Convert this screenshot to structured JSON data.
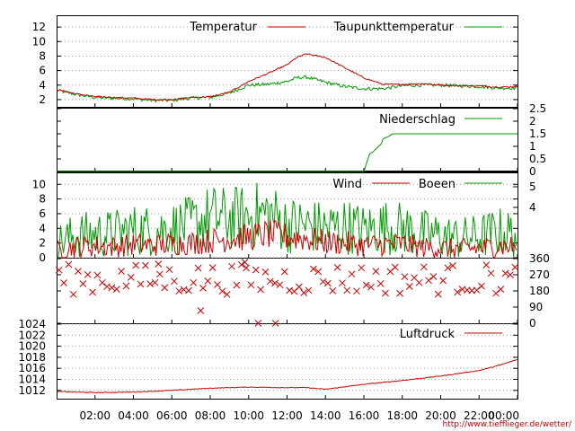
{
  "source_url": "http://www.tiefflieger.de/wetter/",
  "x_axis": {
    "ticks": [
      "02:00",
      "04:00",
      "06:00",
      "08:00",
      "10:00",
      "12:00",
      "14:00",
      "16:00",
      "18:00",
      "20:00",
      "22:00",
      "00:00"
    ],
    "range_hours": [
      0,
      24
    ]
  },
  "colors": {
    "red": "#cc0000",
    "green": "#009900",
    "grid": "#9a9a9a"
  },
  "chart_data": [
    {
      "type": "line",
      "panel": "temperature",
      "legend": [
        "Temperatur",
        "Taupunkttemperatur"
      ],
      "y_ticks": [
        "2",
        "4",
        "6",
        "8",
        "10",
        "12"
      ],
      "ylim": [
        1,
        13.5
      ],
      "x_hours": [
        0,
        1,
        2,
        3,
        4,
        5,
        6,
        7,
        8,
        9,
        10,
        11,
        12,
        12.5,
        13,
        14,
        15,
        16,
        17,
        18,
        19,
        20,
        21,
        22,
        23,
        24
      ],
      "series": [
        {
          "name": "Temperatur",
          "color": "#cc0000",
          "values": [
            3.4,
            2.8,
            2.4,
            2.3,
            2.2,
            2.0,
            2.0,
            2.3,
            2.4,
            3.0,
            4.5,
            5.6,
            6.8,
            7.8,
            8.3,
            7.8,
            6.4,
            5.0,
            4.1,
            4.1,
            4.2,
            4.0,
            3.9,
            3.9,
            3.7,
            3.8
          ]
        },
        {
          "name": "Taupunkttemperatur",
          "color": "#009900",
          "values": [
            3.3,
            2.7,
            2.3,
            2.2,
            2.1,
            1.9,
            1.9,
            2.2,
            2.3,
            2.9,
            4.0,
            4.1,
            4.5,
            5.0,
            5.1,
            4.4,
            3.8,
            3.5,
            3.5,
            3.9,
            4.0,
            4.0,
            3.9,
            3.8,
            3.6,
            3.6
          ]
        }
      ]
    },
    {
      "type": "line",
      "panel": "precipitation",
      "legend": [
        "Niederschlag"
      ],
      "y_ticks": [
        "0",
        "0.5",
        "1",
        "1.5",
        "2",
        "2.5"
      ],
      "ylim": [
        0,
        2.5
      ],
      "x_hours": [
        0,
        16.0,
        16.3,
        16.5,
        16.9,
        17.0,
        17.3,
        17.5,
        24
      ],
      "series": [
        {
          "name": "Niederschlag",
          "color": "#009900",
          "values": [
            0,
            0,
            0.7,
            0.8,
            1.1,
            1.3,
            1.4,
            1.5,
            1.5
          ]
        }
      ]
    },
    {
      "type": "line",
      "panel": "wind",
      "legend": [
        "Wind",
        "Boeen"
      ],
      "y_ticks_left": [
        "0",
        "2",
        "4",
        "6",
        "8",
        "10"
      ],
      "y_ticks_right": [
        "4",
        "5"
      ],
      "ylim": [
        0,
        11.5
      ],
      "x_hours": [
        0,
        1,
        2,
        3,
        4,
        5,
        6,
        7,
        8,
        9,
        10,
        11,
        12,
        13,
        14,
        15,
        16,
        17,
        18,
        19,
        20,
        21,
        22,
        23,
        24
      ],
      "series": [
        {
          "name": "Wind",
          "color": "#cc0000",
          "values": [
            1.0,
            1.5,
            1.6,
            1.5,
            1.8,
            1.7,
            1.9,
            2.0,
            2.3,
            2.6,
            2.8,
            3.2,
            2.9,
            2.6,
            2.1,
            2.0,
            1.7,
            1.8,
            1.9,
            1.4,
            1.3,
            1.2,
            1.3,
            1.6,
            1.5
          ]
        },
        {
          "name": "Boeen",
          "color": "#009900",
          "values": [
            2.0,
            3.0,
            3.2,
            3.3,
            3.8,
            3.7,
            4.0,
            4.5,
            5.5,
            5.3,
            5.6,
            6.0,
            4.5,
            4.4,
            4.0,
            4.3,
            3.8,
            4.2,
            4.0,
            3.3,
            3.0,
            2.6,
            2.9,
            3.5,
            3.2
          ]
        }
      ]
    },
    {
      "type": "scatter",
      "panel": "wind_direction",
      "y_ticks": [
        "0",
        "90",
        "180",
        "270",
        "360"
      ],
      "ylim": [
        0,
        360
      ],
      "marker": "x",
      "color": "#cc0000",
      "points_per_hour": 4,
      "typical_range_deg": [
        160,
        330
      ],
      "outliers": [
        [
          7.5,
          70
        ],
        [
          10.5,
          0
        ],
        [
          11.4,
          0
        ],
        [
          5.3,
          330
        ],
        [
          9.8,
          340
        ]
      ]
    },
    {
      "type": "line",
      "panel": "pressure",
      "legend": [
        "Luftdruck"
      ],
      "y_ticks": [
        "1012",
        "1014",
        "1016",
        "1018",
        "1020",
        "1022",
        "1024"
      ],
      "ylim": [
        1010.5,
        1024
      ],
      "x_hours": [
        0,
        2,
        4,
        6,
        8,
        10,
        12,
        13,
        14,
        16,
        18,
        20,
        22,
        23,
        24
      ],
      "series": [
        {
          "name": "Luftdruck",
          "color": "#cc0000",
          "values": [
            1011.8,
            1011.6,
            1011.7,
            1012.0,
            1012.4,
            1012.6,
            1012.5,
            1012.5,
            1012.2,
            1013.1,
            1013.8,
            1014.6,
            1015.6,
            1016.5,
            1017.6
          ]
        }
      ]
    }
  ]
}
